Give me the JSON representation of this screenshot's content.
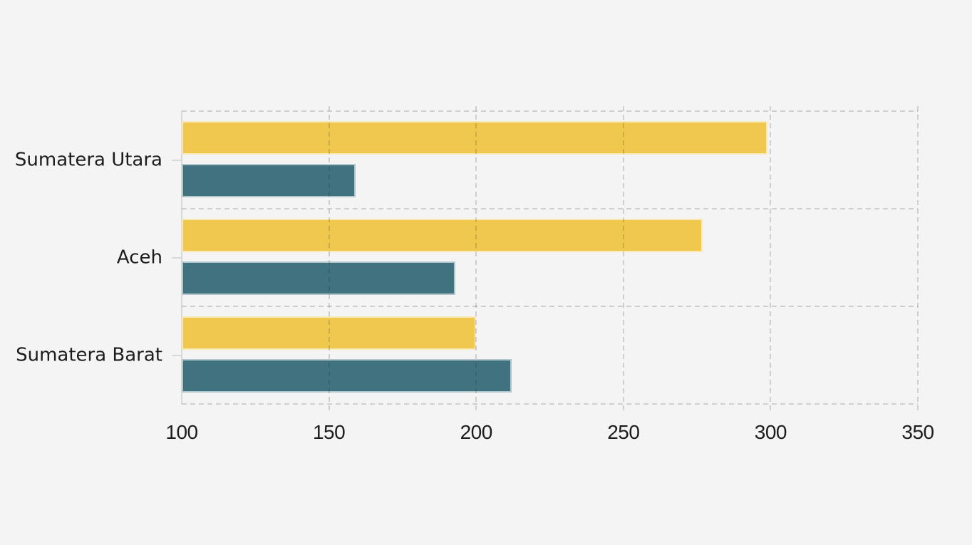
{
  "chart": {
    "background": "#f4f4f4",
    "text_color": "#1c1c1c",
    "gridline_style": "dashed",
    "axis_spine_color": "#d8d8d8"
  },
  "chart_data": {
    "type": "bar",
    "orientation": "horizontal",
    "title": "",
    "xlabel": "",
    "ylabel": "",
    "legend": "none",
    "categories": [
      "Sumatera Utara",
      "Aceh",
      "Sumatera Barat"
    ],
    "series": [
      {
        "name": "yellow",
        "color": "#f0c84e",
        "values": [
          299,
          277,
          200
        ]
      },
      {
        "name": "teal",
        "color": "#40727f",
        "values": [
          159,
          193,
          212
        ]
      }
    ],
    "x_ticks": [
      100,
      150,
      200,
      250,
      300,
      350
    ],
    "x_tick_labels": [
      "100",
      "150",
      "200",
      "250",
      "300",
      "350"
    ],
    "xlim": [
      100,
      350
    ],
    "grid": "dashed vertical at x ticks, dashed horizontal at category boundaries"
  }
}
